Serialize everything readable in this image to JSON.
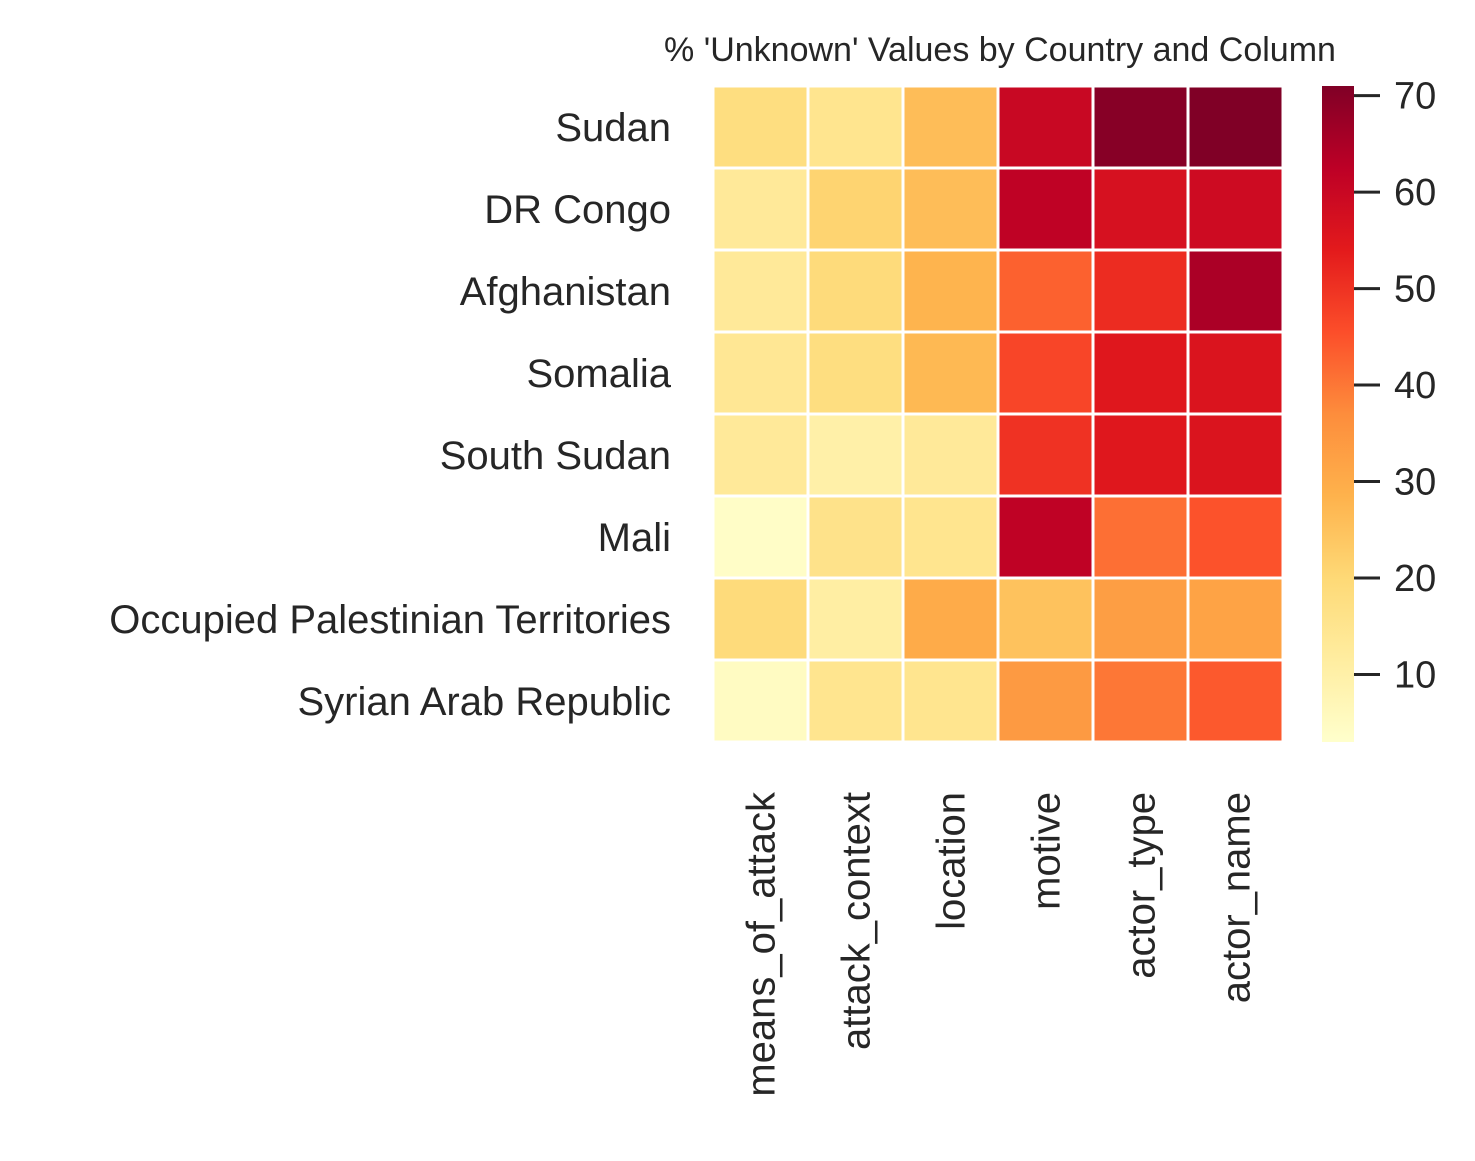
{
  "chart_data": {
    "type": "heatmap",
    "title": "% 'Unknown' Values by Country and Column",
    "xlabel": "",
    "ylabel": "",
    "columns": [
      "means_of_attack",
      "attack_context",
      "location",
      "motive",
      "actor_type",
      "actor_name"
    ],
    "rows": [
      "Sudan",
      "DR Congo",
      "Afghanistan",
      "Somalia",
      "South Sudan",
      "Mali",
      "Occupied Palestinian Territories",
      "Syrian Arab Republic"
    ],
    "values": [
      [
        18,
        15,
        26,
        60,
        70,
        71
      ],
      [
        13,
        21,
        26,
        62,
        57,
        59
      ],
      [
        13,
        19,
        28,
        43,
        51,
        65
      ],
      [
        14,
        18,
        27,
        47,
        55,
        56
      ],
      [
        13,
        10,
        13,
        50,
        55,
        56
      ],
      [
        4,
        16,
        15,
        62,
        41,
        45
      ],
      [
        19,
        11,
        30,
        25,
        33,
        32
      ],
      [
        5,
        15,
        15,
        34,
        40,
        44
      ]
    ],
    "colormap": "YlOrRd",
    "vmin": 3,
    "vmax": 71,
    "colorbar_ticks": [
      10,
      20,
      30,
      40,
      50,
      60,
      70
    ],
    "grid": false,
    "legend": "colorbar-right"
  }
}
